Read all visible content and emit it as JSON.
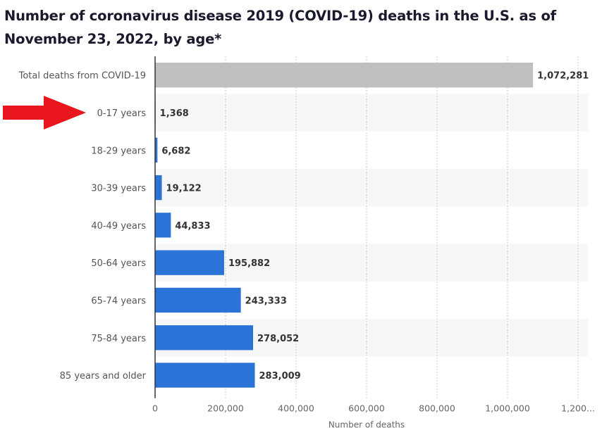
{
  "chart_data": {
    "type": "bar",
    "orientation": "horizontal",
    "title": "Number of coronavirus disease 2019 (COVID-19) deaths in the U.S. as of November 23, 2022, by age*",
    "xlabel": "Number of deaths",
    "ylabel": "",
    "xlim": [
      0,
      1200000
    ],
    "xticks": [
      "0",
      "200,000",
      "400,000",
      "600,000",
      "800,000",
      "1,000,000",
      "1,200..."
    ],
    "xtick_values": [
      0,
      200000,
      400000,
      600000,
      800000,
      1000000,
      1200000
    ],
    "grid": true,
    "categories": [
      "Total deaths from COVID-19",
      "0-17 years",
      "18-29 years",
      "30-39 years",
      "40-49 years",
      "50-64 years",
      "65-74 years",
      "75-84 years",
      "85 years and older"
    ],
    "values": [
      1072281,
      1368,
      6682,
      19122,
      44833,
      195882,
      243333,
      278052,
      283009
    ],
    "value_labels": [
      "1,072,281",
      "1,368",
      "6,682",
      "19,122",
      "44,833",
      "195,882",
      "243,333",
      "278,052",
      "283,009"
    ],
    "bar_colors": [
      "#c0c0c0",
      "#2b73d6",
      "#2b73d6",
      "#2b73d6",
      "#2b73d6",
      "#2b73d6",
      "#2b73d6",
      "#2b73d6",
      "#2b73d6"
    ],
    "annotations": [
      {
        "type": "arrow",
        "color": "#e8141e",
        "points_to": "0-17 years"
      }
    ]
  }
}
